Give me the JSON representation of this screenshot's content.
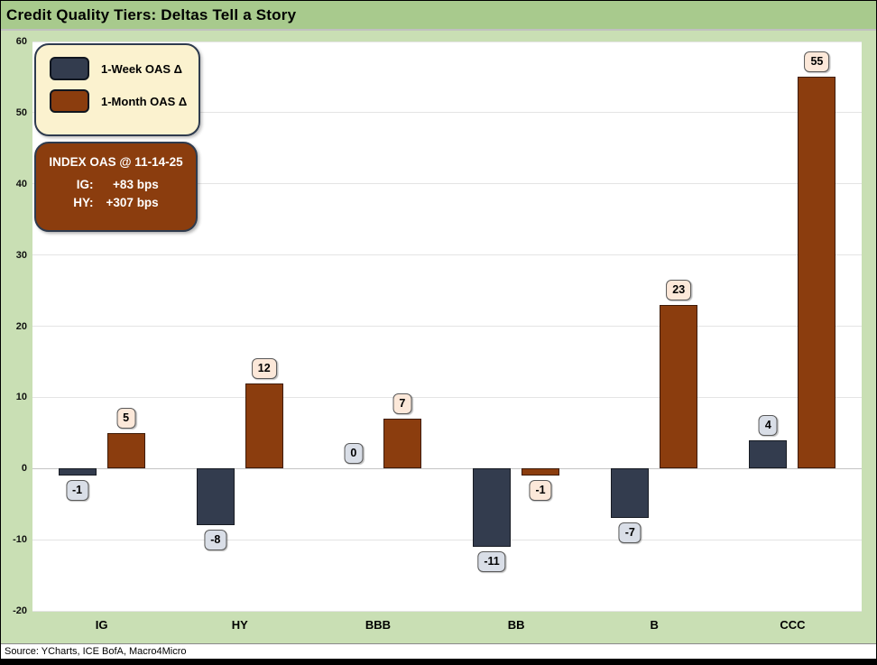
{
  "window": {
    "title": "Credit Quality Tiers: Deltas Tell a Story"
  },
  "legend": {
    "items": [
      {
        "label": "1-Week OAS Δ",
        "color": "#333C4E"
      },
      {
        "label": "1-Month OAS Δ",
        "color": "#8B3D0E"
      }
    ]
  },
  "info_box": {
    "heading": "INDEX OAS @ 11-14-25",
    "rows": [
      {
        "label": "IG:",
        "value": "+83 bps"
      },
      {
        "label": "HY:",
        "value": "+307 bps"
      }
    ]
  },
  "footer": {
    "source": "Source: YCharts, ICE BofA, Macro4Micro"
  },
  "colors": {
    "title_bar_green": "#A8CA8D",
    "background_green": "#C9DFB4",
    "plot_background": "#FFFFFF",
    "gridline": "#E4E4E4",
    "week_bar": "#333C4E",
    "month_bar": "#8B3D0E",
    "legend_background": "#FBF2CF",
    "info_box_background": "#8B3D0E",
    "week_label_background": "#D9DEE7",
    "month_label_background": "#FCE8D9"
  },
  "chart_data": {
    "type": "bar",
    "title": "Credit Quality Tiers: Deltas Tell a Story",
    "categories": [
      "IG",
      "HY",
      "BBB",
      "BB",
      "B",
      "CCC"
    ],
    "series": [
      {
        "name": "1-Week OAS Δ",
        "values": [
          -1,
          -8,
          0,
          -11,
          -7,
          4
        ],
        "color": "#333C4E",
        "label_bg": "#D9DEE7"
      },
      {
        "name": "1-Month OAS Δ",
        "values": [
          5,
          12,
          7,
          -1,
          23,
          55
        ],
        "color": "#8B3D0E",
        "label_bg": "#FCE8D9"
      }
    ],
    "xlabel": "",
    "ylabel": "",
    "ylim": [
      -20,
      60
    ],
    "yticks": [
      60,
      50,
      40,
      30,
      20,
      10,
      0,
      -10,
      -20
    ],
    "grid": true,
    "legend_position": "top-left",
    "annotations": [
      "INDEX OAS @ 11-14-25",
      "IG: +83 bps",
      "HY: +307 bps"
    ],
    "data_labels": true
  }
}
